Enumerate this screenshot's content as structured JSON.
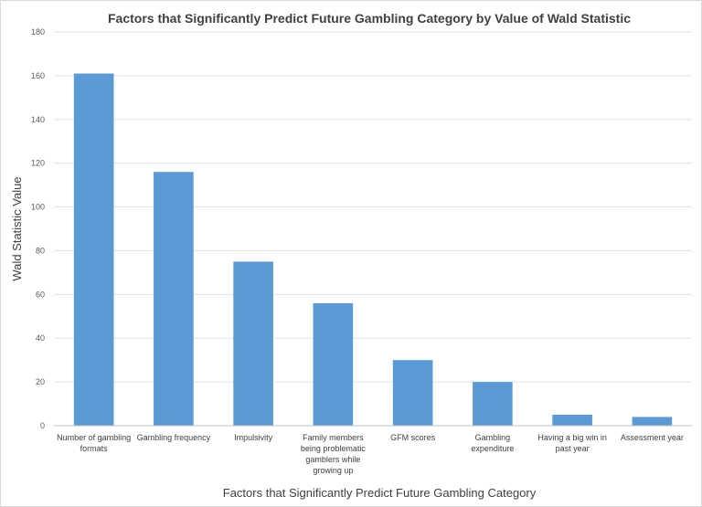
{
  "chart_data": {
    "type": "bar",
    "title": "Factors that Significantly Predict Future Gambling Category by Value of Wald Statistic",
    "xlabel": "Factors that Significantly Predict Future Gambling Category",
    "ylabel": "Wald Statistic Value",
    "ylim": [
      0,
      180
    ],
    "yticks": [
      0,
      20,
      40,
      60,
      80,
      100,
      120,
      140,
      160,
      180
    ],
    "grid": true,
    "legend": "none",
    "color": "#5b9bd5",
    "categories": [
      "Number of gambling formats",
      "Gambling frequency",
      "Impulsivity",
      "Family members being problematic gamblers while growing up",
      "GFM scores",
      "Gambling expenditure",
      "Having a big win in past year",
      "Assessment year"
    ],
    "category_lines": [
      [
        "Number of gambling",
        "formats"
      ],
      [
        "Gambling frequency"
      ],
      [
        "Impulsivity"
      ],
      [
        "Family members",
        "being problematic",
        "gamblers while",
        "growing up"
      ],
      [
        "GFM scores"
      ],
      [
        "Gambling",
        "expenditure"
      ],
      [
        "Having a big win in",
        "past year"
      ],
      [
        "Assessment year"
      ]
    ],
    "values": [
      161,
      116,
      75,
      56,
      30,
      20,
      5,
      4
    ]
  }
}
